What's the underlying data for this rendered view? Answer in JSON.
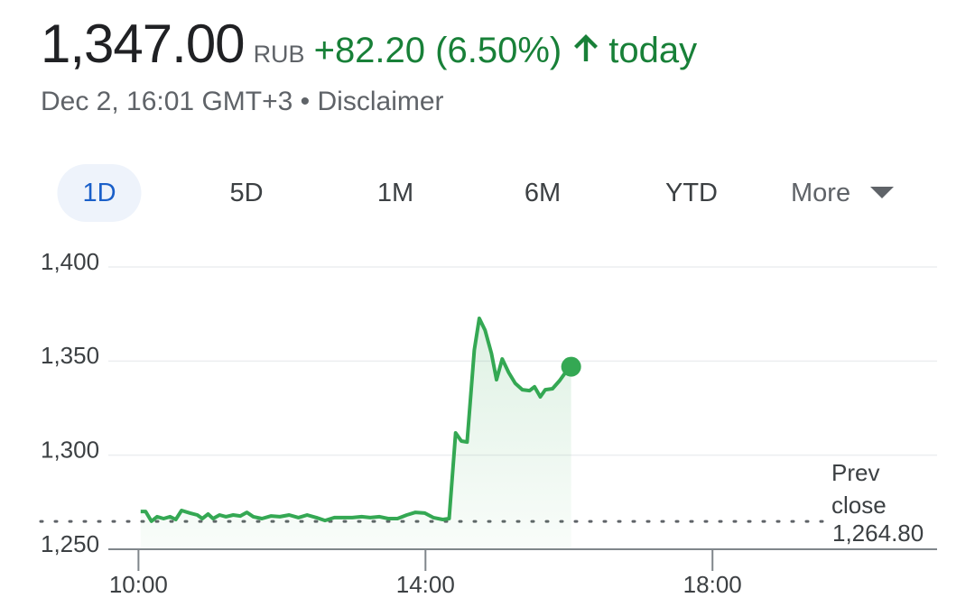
{
  "header": {
    "price": "1,347.00",
    "currency": "RUB",
    "change": "+82.20 (6.50%)",
    "period": "today",
    "timestamp": "Dec 2, 16:01 GMT+3",
    "disclaimer": "Disclaimer"
  },
  "tabs": {
    "items": [
      "1D",
      "5D",
      "1M",
      "6M",
      "YTD"
    ],
    "more": "More",
    "selected": 0
  },
  "chart_data": {
    "type": "line",
    "color": "#34a853",
    "x": [
      10.03,
      10.1,
      10.18,
      10.26,
      10.35,
      10.44,
      10.52,
      10.6,
      10.72,
      10.82,
      10.89,
      10.97,
      11.04,
      11.13,
      11.22,
      11.32,
      11.42,
      11.51,
      11.6,
      11.72,
      11.85,
      11.97,
      12.1,
      12.23,
      12.35,
      12.48,
      12.6,
      12.73,
      12.86,
      12.98,
      13.11,
      13.23,
      13.36,
      13.48,
      13.61,
      13.74,
      13.86,
      13.99,
      14.11,
      14.24,
      14.33,
      14.42,
      14.5,
      14.58,
      14.68,
      14.75,
      14.83,
      14.92,
      14.99,
      15.07,
      15.16,
      15.25,
      15.35,
      15.45,
      15.52,
      15.6,
      15.67,
      15.77,
      15.87,
      15.95,
      16.03
    ],
    "values": [
      1270.1,
      1270.1,
      1264.9,
      1267.3,
      1266.3,
      1267.3,
      1265.8,
      1270.6,
      1269.2,
      1268.2,
      1266.3,
      1268.7,
      1266.3,
      1268.2,
      1267.3,
      1268.2,
      1267.7,
      1269.6,
      1267.3,
      1266.3,
      1267.7,
      1267.3,
      1268.2,
      1266.8,
      1268.2,
      1266.8,
      1265.3,
      1266.8,
      1266.8,
      1266.8,
      1267.3,
      1266.8,
      1267.3,
      1266.3,
      1266.3,
      1268.2,
      1269.6,
      1269.2,
      1266.8,
      1265.8,
      1266.3,
      1311.8,
      1307.5,
      1307.0,
      1355.9,
      1372.7,
      1366.4,
      1354.0,
      1340.1,
      1351.1,
      1343.9,
      1338.2,
      1334.8,
      1334.3,
      1336.3,
      1331.0,
      1334.8,
      1335.3,
      1339.6,
      1343.9,
      1347
    ],
    "xlim": [
      9.58,
      21.13
    ],
    "xticks": [
      {
        "value": 10,
        "label": "10:00"
      },
      {
        "value": 14,
        "label": "14:00"
      },
      {
        "value": 18,
        "label": "18:00"
      }
    ],
    "ylim": [
      1250,
      1400
    ],
    "yticks": [
      {
        "value": 1250,
        "label": "1,250"
      },
      {
        "value": 1300,
        "label": "1,300"
      },
      {
        "value": 1350,
        "label": "1,350"
      },
      {
        "value": 1400,
        "label": "1,400"
      }
    ],
    "grid": true,
    "reference_line": {
      "label": "Prev close",
      "value": 1264.8,
      "value_label": "1,264.80"
    }
  }
}
